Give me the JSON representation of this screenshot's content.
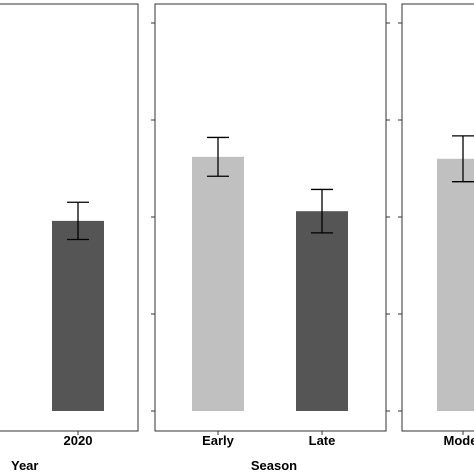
{
  "chart_data": [
    {
      "type": "bar",
      "xlabel": "Year",
      "categories": [
        "2020"
      ],
      "values": [
        49
      ],
      "errors": [
        4.8
      ],
      "colors": [
        "#555555"
      ],
      "ylim": [
        0,
        100
      ]
    },
    {
      "type": "bar",
      "xlabel": "Season",
      "categories": [
        "Early",
        "Late"
      ],
      "values": [
        65.5,
        51.5
      ],
      "errors": [
        5.0,
        5.6
      ],
      "colors": [
        "#c0c0c0",
        "#555555"
      ],
      "ylim": [
        0,
        100
      ]
    },
    {
      "type": "bar",
      "xlabel": "",
      "categories": [
        "Moder"
      ],
      "values": [
        65
      ],
      "errors": [
        5.9
      ],
      "colors": [
        "#c0c0c0"
      ],
      "ylim": [
        0,
        100
      ]
    }
  ]
}
